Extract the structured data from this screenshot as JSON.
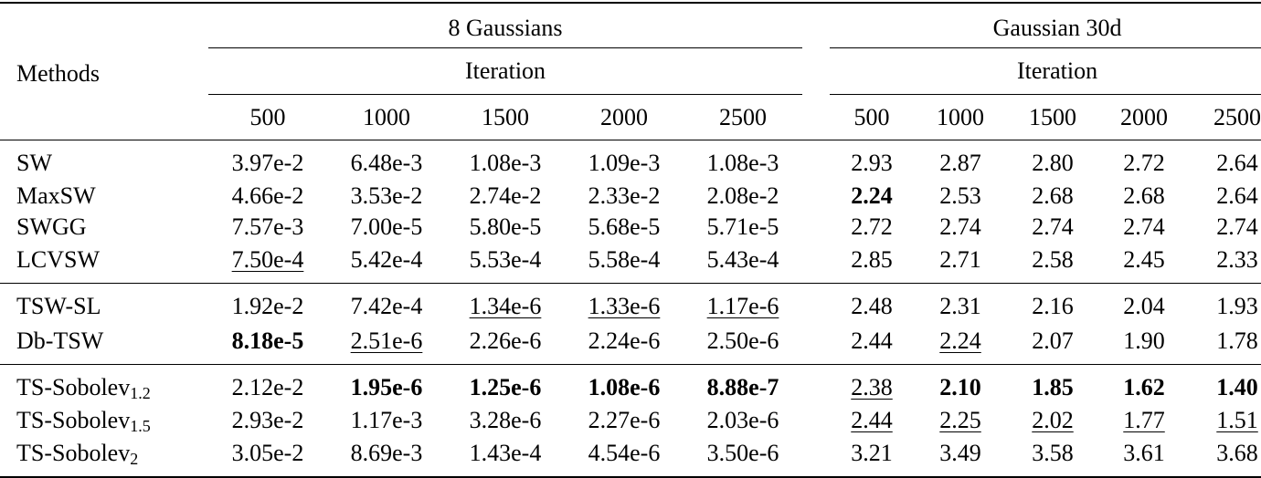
{
  "header": {
    "methods_label": "Methods",
    "group1": "8 Gaussians",
    "group2": "Gaussian 30d",
    "sub_label": "Iteration",
    "iterations": [
      "500",
      "1000",
      "1500",
      "2000",
      "2500"
    ]
  },
  "rows": [
    {
      "method": "SW",
      "sub": "",
      "g1": [
        "3.97e-2",
        "6.48e-3",
        "1.08e-3",
        "1.09e-3",
        "1.08e-3"
      ],
      "g2": [
        "2.93",
        "2.87",
        "2.80",
        "2.72",
        "2.64"
      ]
    },
    {
      "method": "MaxSW",
      "sub": "",
      "g1": [
        "4.66e-2",
        "3.53e-2",
        "2.74e-2",
        "2.33e-2",
        "2.08e-2"
      ],
      "g2": [
        "2.24",
        "2.53",
        "2.68",
        "2.68",
        "2.64"
      ]
    },
    {
      "method": "SWGG",
      "sub": "",
      "g1": [
        "7.57e-3",
        "7.00e-5",
        "5.80e-5",
        "5.68e-5",
        "5.71e-5"
      ],
      "g2": [
        "2.72",
        "2.74",
        "2.74",
        "2.74",
        "2.74"
      ]
    },
    {
      "method": "LCVSW",
      "sub": "",
      "g1": [
        "7.50e-4",
        "5.42e-4",
        "5.53e-4",
        "5.58e-4",
        "5.43e-4"
      ],
      "g2": [
        "2.85",
        "2.71",
        "2.58",
        "2.45",
        "2.33"
      ]
    },
    {
      "method": "TSW-SL",
      "sub": "",
      "g1": [
        "1.92e-2",
        "7.42e-4",
        "1.34e-6",
        "1.33e-6",
        "1.17e-6"
      ],
      "g2": [
        "2.48",
        "2.31",
        "2.16",
        "2.04",
        "1.93"
      ]
    },
    {
      "method": "Db-TSW",
      "sub": "",
      "g1": [
        "8.18e-5",
        "2.51e-6",
        "2.26e-6",
        "2.24e-6",
        "2.50e-6"
      ],
      "g2": [
        "2.44",
        "2.24",
        "2.07",
        "1.90",
        "1.78"
      ]
    },
    {
      "method": "TS-Sobolev",
      "sub": "1.2",
      "g1": [
        "2.12e-2",
        "1.95e-6",
        "1.25e-6",
        "1.08e-6",
        "8.88e-7"
      ],
      "g2": [
        "2.38",
        "2.10",
        "1.85",
        "1.62",
        "1.40"
      ]
    },
    {
      "method": "TS-Sobolev",
      "sub": "1.5",
      "g1": [
        "2.93e-2",
        "1.17e-3",
        "3.28e-6",
        "2.27e-6",
        "2.03e-6"
      ],
      "g2": [
        "2.44",
        "2.25",
        "2.02",
        "1.77",
        "1.51"
      ]
    },
    {
      "method": "TS-Sobolev",
      "sub": "2",
      "g1": [
        "3.05e-2",
        "8.69e-3",
        "1.43e-4",
        "4.54e-6",
        "3.50e-6"
      ],
      "g2": [
        "3.21",
        "3.49",
        "3.58",
        "3.61",
        "3.68"
      ]
    }
  ]
}
